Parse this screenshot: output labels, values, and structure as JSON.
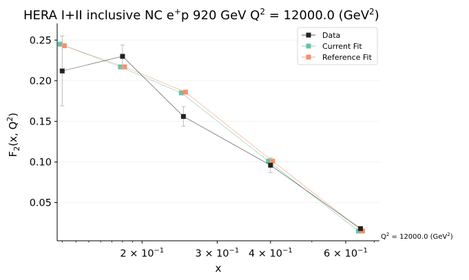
{
  "chart_data": {
    "type": "scatter",
    "title_main": "HERA I+II inclusive NC e",
    "title_sup1": "+",
    "title_mid": "p 920 GeV Q",
    "title_sup2": "2",
    "title_rest": " = 12000.0 (GeV",
    "title_sup3": "2",
    "title_end": ")",
    "xlabel": "x",
    "ylabel_main": "F",
    "ylabel_sub": "2",
    "ylabel_rest": "(x, Q",
    "ylabel_sup": "2",
    "ylabel_end": ")",
    "xscale": "log",
    "xlim": [
      0.1265,
      0.72
    ],
    "ylim": [
      0.003,
      0.268
    ],
    "yticks": [
      0.05,
      0.1,
      0.15,
      0.2,
      0.25
    ],
    "ytick_labels": [
      "0.05",
      "0.10",
      "0.15",
      "0.20",
      "0.25"
    ],
    "xticks": [
      {
        "mantissa": "2",
        "value": 0.2
      },
      {
        "mantissa": "3",
        "value": 0.3
      },
      {
        "mantissa": "4",
        "value": 0.4
      },
      {
        "mantissa": "6",
        "value": 0.6
      }
    ],
    "xtick_base": "× 10",
    "xtick_exp": "−1",
    "grid": true,
    "legend_position": "top-right",
    "annotation_main": "Q",
    "annotation_sup": "2",
    "annotation_rest": " = 12000.0 (GeV",
    "annotation_sup2": "2",
    "annotation_end": ")",
    "series": [
      {
        "name": "Data",
        "color": "#222222",
        "x": [
          0.13,
          0.18,
          0.25,
          0.4,
          0.65
        ],
        "y": [
          0.212,
          0.23,
          0.156,
          0.096,
          0.018
        ],
        "yerr": [
          0.043,
          0.014,
          0.012,
          0.009,
          0.002
        ]
      },
      {
        "name": "Current Fit",
        "color": "#66c2a5",
        "x": [
          0.13,
          0.18,
          0.25,
          0.4,
          0.65
        ],
        "y": [
          0.245,
          0.217,
          0.185,
          0.101,
          0.015
        ]
      },
      {
        "name": "Reference Fit",
        "color": "#fc8d62",
        "x": [
          0.13,
          0.18,
          0.25,
          0.4,
          0.65
        ],
        "y": [
          0.243,
          0.217,
          0.186,
          0.101,
          0.015
        ]
      }
    ]
  }
}
